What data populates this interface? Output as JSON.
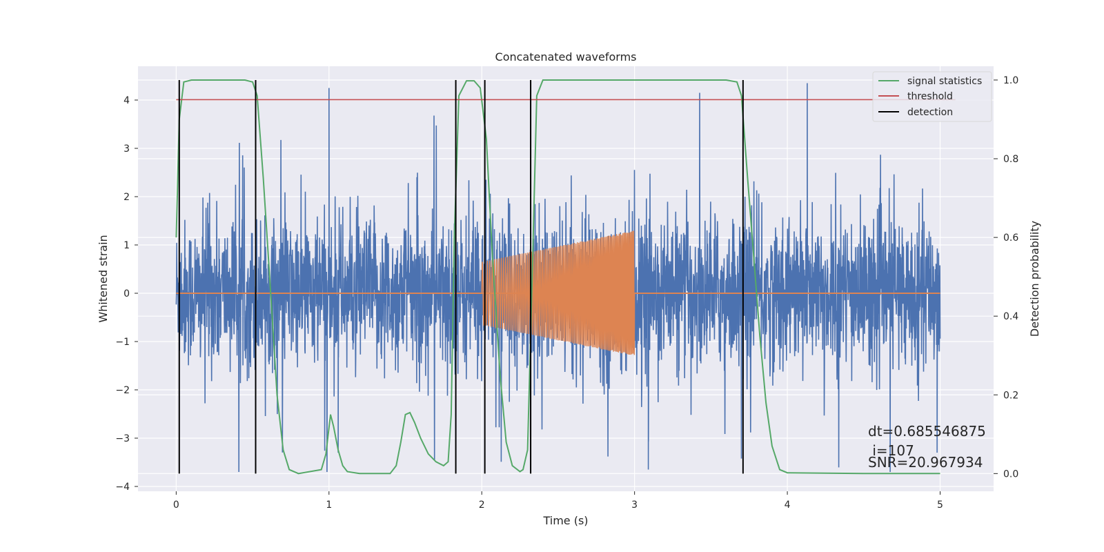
{
  "chart_data": {
    "type": "line",
    "title": "Concatenated waveforms",
    "xlabel": "Time (s)",
    "ylabel": "Whitened strain",
    "y2label": "Detection probability",
    "xlim": [
      -0.25,
      5.35
    ],
    "ylim": [
      -4.1,
      4.7
    ],
    "y2lim": [
      -0.045,
      1.035
    ],
    "x_ticks": [
      0,
      1,
      2,
      3,
      4,
      5
    ],
    "y_ticks": [
      -4,
      -3,
      -2,
      -1,
      0,
      1,
      2,
      3,
      4
    ],
    "y2_ticks": [
      0.0,
      0.2,
      0.4,
      0.6,
      0.8,
      1.0
    ],
    "x_tick_labels": [
      "0",
      "1",
      "2",
      "3",
      "4",
      "5"
    ],
    "y_tick_labels": [
      "−4",
      "−3",
      "−2",
      "−1",
      "0",
      "1",
      "2",
      "3",
      "4"
    ],
    "y2_tick_labels": [
      "0.0",
      "0.2",
      "0.4",
      "0.6",
      "0.8",
      "1.0"
    ],
    "grid": true,
    "legend_position": "top-right",
    "legend": [
      "signal statistics",
      "threshold",
      "detection"
    ],
    "colors": {
      "noise": "#4c72b0",
      "injected": "#dd8452",
      "signal_statistics": "#55a868",
      "threshold": "#c44e52",
      "detection": "#000000",
      "background": "#eaeaf2",
      "grid": "#ffffff"
    },
    "series": [
      {
        "name": "signal statistics",
        "axis": "right",
        "x": [
          0.0,
          0.02,
          0.05,
          0.1,
          0.3,
          0.45,
          0.5,
          0.53,
          0.57,
          0.62,
          0.66,
          0.7,
          0.74,
          0.8,
          0.95,
          0.98,
          1.01,
          1.03,
          1.06,
          1.09,
          1.12,
          1.2,
          1.4,
          1.44,
          1.47,
          1.5,
          1.53,
          1.56,
          1.6,
          1.65,
          1.7,
          1.75,
          1.78,
          1.8,
          1.82,
          1.85,
          1.9,
          1.95,
          1.99,
          2.03,
          2.07,
          2.12,
          2.16,
          2.2,
          2.25,
          2.27,
          2.3,
          2.33,
          2.36,
          2.4,
          3.0,
          3.6,
          3.67,
          3.7,
          3.74,
          3.78,
          3.82,
          3.86,
          3.9,
          3.95,
          4.0,
          4.5,
          5.0
        ],
        "values": [
          0.6,
          0.9,
          0.995,
          1.0,
          1.0,
          1.0,
          0.995,
          0.96,
          0.75,
          0.45,
          0.2,
          0.06,
          0.01,
          0.0,
          0.01,
          0.05,
          0.15,
          0.12,
          0.06,
          0.02,
          0.005,
          0.0,
          0.0,
          0.02,
          0.08,
          0.15,
          0.155,
          0.13,
          0.09,
          0.05,
          0.03,
          0.02,
          0.03,
          0.15,
          0.6,
          0.96,
          0.998,
          0.998,
          0.98,
          0.85,
          0.55,
          0.25,
          0.08,
          0.02,
          0.005,
          0.01,
          0.06,
          0.5,
          0.96,
          1.0,
          1.0,
          1.0,
          0.995,
          0.96,
          0.75,
          0.55,
          0.35,
          0.18,
          0.07,
          0.01,
          0.002,
          0.0,
          0.0
        ]
      },
      {
        "name": "threshold",
        "axis": "right",
        "x": [
          0.0,
          5.1
        ],
        "values": [
          0.95,
          0.95
        ]
      },
      {
        "name": "detection",
        "axis": "right",
        "type": "vlines",
        "x": [
          0.02,
          0.52,
          1.83,
          2.02,
          2.32,
          3.71
        ],
        "ymin": 0.0,
        "ymax": 1.0
      }
    ],
    "noise": {
      "x_range": [
        0.0,
        5.0
      ],
      "samples": 3000,
      "typical_range": [
        -1.6,
        1.6
      ],
      "max": 4.35,
      "min": -3.7,
      "spikes": [
        [
          1.0,
          4.25
        ],
        [
          4.13,
          4.35
        ],
        [
          1.06,
          -3.3
        ],
        [
          3.09,
          -3.65
        ],
        [
          4.98,
          -3.3
        ]
      ]
    },
    "injected_signal": {
      "x_range": [
        2.0,
        3.0
      ],
      "amplitude_start": 0.65,
      "amplitude_end": 1.3,
      "baseline": 0.0,
      "baseline_range": [
        0.0,
        5.0
      ]
    },
    "annotations": [
      "dt=0.685546875",
      " i=107",
      "SNR=20.967934"
    ]
  }
}
